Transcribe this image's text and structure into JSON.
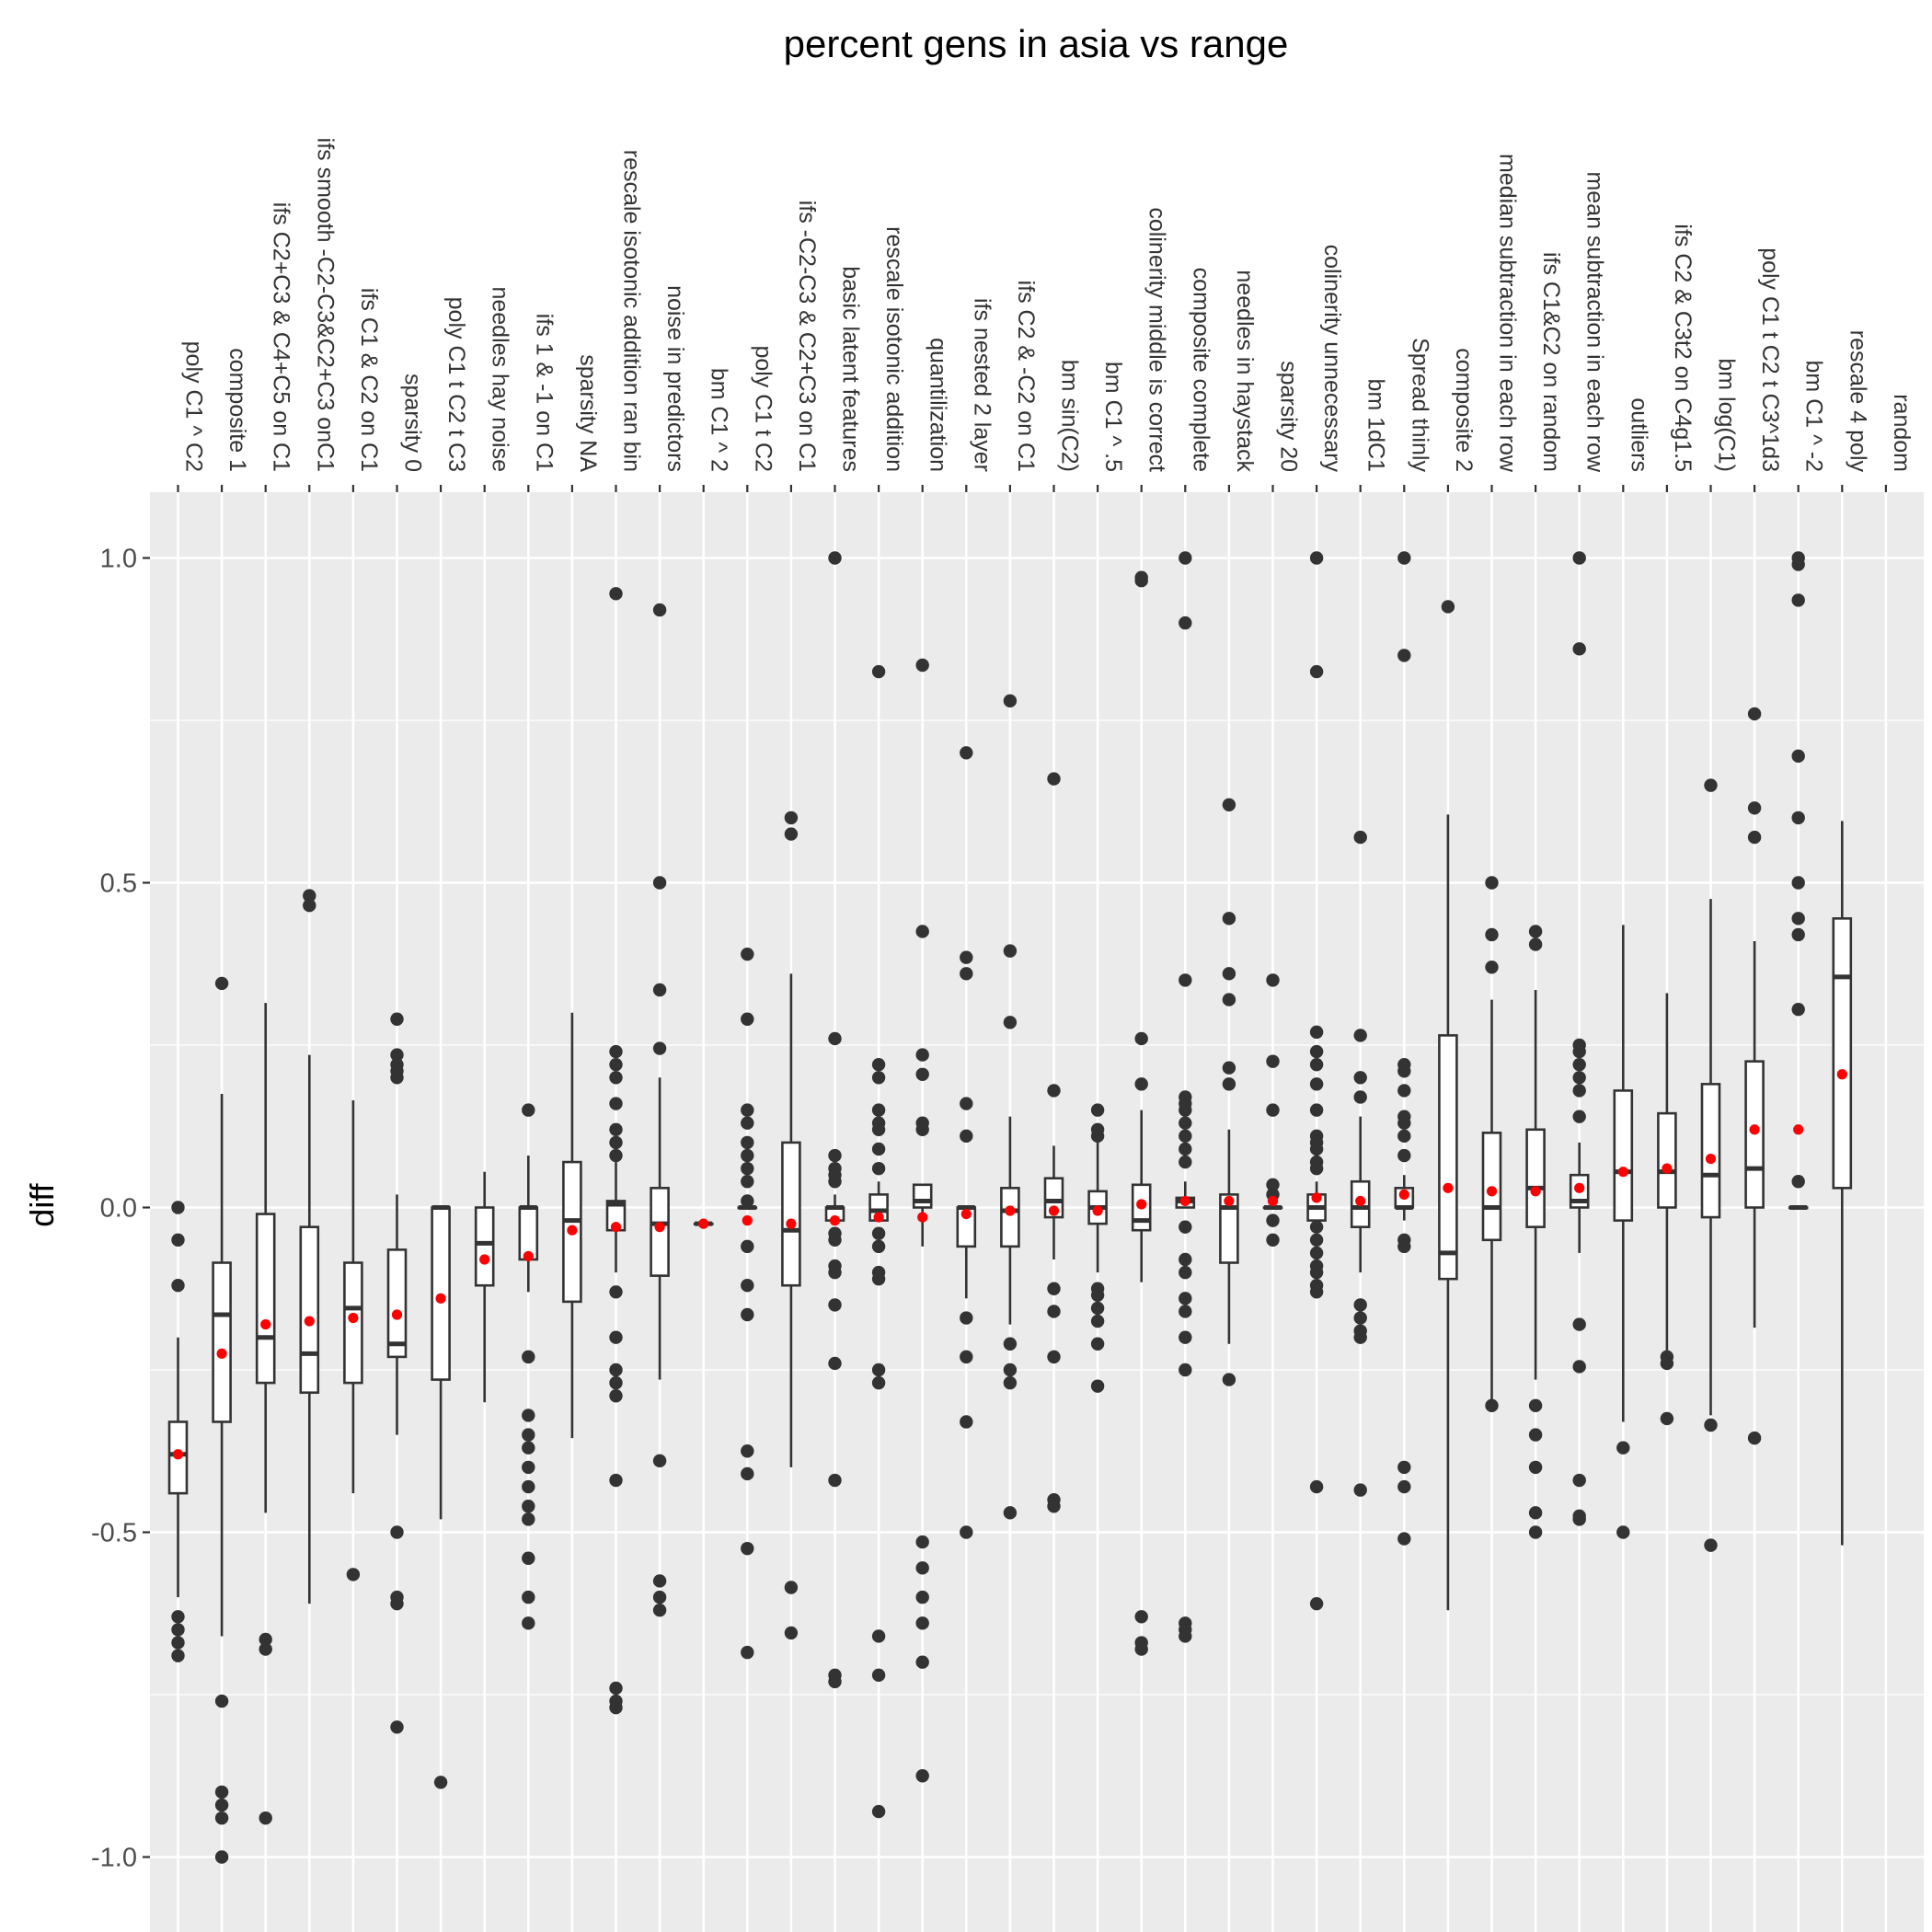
{
  "chart_data": {
    "type": "box",
    "title": "percent gens in asia vs range",
    "xlabel": "",
    "ylabel": "diff",
    "x_axis_position": "top",
    "x_tick_rotation": "vertical",
    "ylim": [
      -1.1,
      1.1
    ],
    "y_ticks": [
      -1.0,
      -0.5,
      0.0,
      0.5,
      1.0
    ],
    "y_tick_labels": [
      "-1.0",
      "-0.5",
      "0.0",
      "0.5",
      "1.0"
    ],
    "grid": true,
    "legend": "none",
    "colors": {
      "panel": "#ebebeb",
      "grid": "#ffffff",
      "box_fill": "#ffffff",
      "box_line": "#333333",
      "outlier": "#333333",
      "mean_point": "#ff0000"
    },
    "series": [
      {
        "name": "poly C1 ^ C2",
        "box": [
          -0.6,
          -0.44,
          -0.38,
          -0.33,
          -0.2
        ],
        "mean": -0.38,
        "outliers": [
          0.0,
          -0.05,
          -0.12,
          -0.63,
          -0.65,
          -0.67,
          -0.69
        ]
      },
      {
        "name": "composite 1",
        "box": [
          -0.66,
          -0.33,
          -0.165,
          -0.085,
          0.175
        ],
        "mean": -0.225,
        "outliers": [
          0.345,
          -0.76,
          -0.9,
          -0.92,
          -0.94,
          -1.0
        ]
      },
      {
        "name": "ifs C2+C3 & C4+C5 on C1",
        "box": [
          -0.47,
          -0.27,
          -0.2,
          -0.01,
          0.315
        ],
        "mean": -0.18,
        "outliers": [
          -0.665,
          -0.68,
          -0.94
        ]
      },
      {
        "name": "ifs smooth -C2-C3&C2+C3 onC1",
        "box": [
          -0.61,
          -0.285,
          -0.225,
          -0.03,
          0.235
        ],
        "mean": -0.175,
        "outliers": [
          0.48,
          0.465
        ]
      },
      {
        "name": "ifs C1 & C2 on C1",
        "box": [
          -0.44,
          -0.27,
          -0.155,
          -0.085,
          0.165
        ],
        "mean": -0.17,
        "outliers": [
          -0.565
        ]
      },
      {
        "name": "sparsity 0",
        "box": [
          -0.35,
          -0.23,
          -0.21,
          -0.065,
          0.02
        ],
        "mean": -0.165,
        "outliers": [
          0.29,
          0.235,
          0.22,
          0.21,
          0.2,
          -0.5,
          -0.6,
          -0.61,
          -0.8
        ]
      },
      {
        "name": "poly C1 t C2 t C3",
        "box": [
          -0.48,
          -0.265,
          0.0,
          0.0,
          0.0
        ],
        "mean": -0.14,
        "outliers": [
          -0.885
        ]
      },
      {
        "name": "needles hay noise",
        "box": [
          -0.3,
          -0.12,
          -0.055,
          0.0,
          0.055
        ],
        "mean": -0.08,
        "outliers": []
      },
      {
        "name": "ifs 1 & -1 on C1",
        "box": [
          -0.13,
          -0.08,
          0.0,
          0.0,
          0.08
        ],
        "mean": -0.075,
        "outliers": [
          0.15,
          -0.23,
          -0.32,
          -0.35,
          -0.37,
          -0.4,
          -0.43,
          -0.46,
          -0.48,
          -0.54,
          -0.6,
          -0.64
        ]
      },
      {
        "name": "sparsity NA",
        "box": [
          -0.355,
          -0.145,
          -0.02,
          0.07,
          0.3
        ],
        "mean": -0.035,
        "outliers": []
      },
      {
        "name": "rescale isotonic addition ran bin",
        "box": [
          -0.1,
          -0.035,
          0.005,
          0.01,
          0.07
        ],
        "mean": -0.03,
        "outliers": [
          0.945,
          0.24,
          0.22,
          0.2,
          0.16,
          0.12,
          0.1,
          0.08,
          -0.13,
          -0.2,
          -0.25,
          -0.27,
          -0.29,
          -0.42,
          -0.74,
          -0.76,
          -0.77
        ]
      },
      {
        "name": "noise in predictors",
        "box": [
          -0.265,
          -0.105,
          -0.025,
          0.03,
          0.2
        ],
        "mean": -0.03,
        "outliers": [
          0.92,
          0.5,
          0.335,
          0.245,
          -0.39,
          -0.575,
          -0.6,
          -0.62
        ]
      },
      {
        "name": "bm C1 ^ 2",
        "box": [
          -0.025,
          -0.025,
          -0.025,
          -0.025,
          -0.025
        ],
        "mean": -0.025,
        "outliers": []
      },
      {
        "name": "poly C1 t C2",
        "box": [
          0.0,
          0.0,
          0.0,
          0.0,
          0.0
        ],
        "mean": -0.02,
        "outliers": [
          0.39,
          0.29,
          0.15,
          0.13,
          0.1,
          0.08,
          0.06,
          0.04,
          0.01,
          -0.06,
          -0.12,
          -0.165,
          -0.375,
          -0.41,
          -0.525,
          -0.685
        ]
      },
      {
        "name": "ifs -C2-C3 & C2+C3 on C1",
        "box": [
          -0.4,
          -0.12,
          -0.035,
          0.1,
          0.36
        ],
        "mean": -0.025,
        "outliers": [
          0.6,
          0.575,
          -0.585,
          -0.655
        ]
      },
      {
        "name": "basic latent features",
        "box": [
          -0.02,
          -0.02,
          0.0,
          0.0,
          0.02
        ],
        "mean": -0.02,
        "outliers": [
          1.0,
          0.26,
          0.08,
          0.06,
          0.05,
          0.04,
          -0.04,
          -0.05,
          -0.09,
          -0.1,
          -0.15,
          -0.24,
          -0.42,
          -0.72,
          -0.73
        ]
      },
      {
        "name": "rescale isotonic addition",
        "box": [
          -0.02,
          -0.02,
          -0.005,
          0.02,
          0.04
        ],
        "mean": -0.015,
        "outliers": [
          0.825,
          0.22,
          0.2,
          0.15,
          0.13,
          0.12,
          0.09,
          0.06,
          -0.04,
          -0.06,
          -0.1,
          -0.11,
          -0.25,
          -0.27,
          -0.66,
          -0.72,
          -0.93
        ]
      },
      {
        "name": "quantilization",
        "box": [
          -0.06,
          0.0,
          0.01,
          0.035,
          0.035
        ],
        "mean": -0.015,
        "outliers": [
          0.835,
          0.425,
          0.235,
          0.205,
          0.13,
          0.12,
          -0.515,
          -0.555,
          -0.6,
          -0.64,
          -0.7,
          -0.875
        ]
      },
      {
        "name": "ifs nested 2 layer",
        "box": [
          -0.14,
          -0.06,
          0.0,
          0.0,
          0.0
        ],
        "mean": -0.01,
        "outliers": [
          0.7,
          0.385,
          0.36,
          0.16,
          0.11,
          -0.17,
          -0.23,
          -0.33,
          -0.5
        ]
      },
      {
        "name": "ifs C2 & -C2 on C1",
        "box": [
          -0.18,
          -0.06,
          -0.005,
          0.03,
          0.14
        ],
        "mean": -0.005,
        "outliers": [
          0.78,
          0.395,
          0.285,
          -0.21,
          -0.25,
          -0.27,
          -0.47
        ]
      },
      {
        "name": "bm sin(C2)",
        "box": [
          -0.08,
          -0.015,
          0.01,
          0.045,
          0.095
        ],
        "mean": -0.005,
        "outliers": [
          0.66,
          0.18,
          -0.125,
          -0.16,
          -0.23,
          -0.45,
          -0.46
        ]
      },
      {
        "name": "bm C1 ^ .5",
        "box": [
          -0.1,
          -0.025,
          0.0,
          0.025,
          0.12
        ],
        "mean": -0.005,
        "outliers": [
          0.15,
          0.12,
          0.11,
          -0.125,
          -0.135,
          -0.155,
          -0.175,
          -0.21,
          -0.275
        ]
      },
      {
        "name": "colinerity middle is correct",
        "box": [
          -0.115,
          -0.035,
          -0.02,
          0.035,
          0.15
        ],
        "mean": 0.005,
        "outliers": [
          0.97,
          0.965,
          0.26,
          0.19,
          -0.63,
          -0.67,
          -0.68
        ]
      },
      {
        "name": "composite complete",
        "box": [
          0.0,
          0.0,
          0.01,
          0.015,
          0.04
        ],
        "mean": 0.01,
        "outliers": [
          1.0,
          0.9,
          0.35,
          0.17,
          0.16,
          0.15,
          0.13,
          0.11,
          0.09,
          0.07,
          -0.03,
          -0.08,
          -0.1,
          -0.14,
          -0.16,
          -0.2,
          -0.25,
          -0.64,
          -0.65,
          -0.66
        ]
      },
      {
        "name": "needles in haystack",
        "box": [
          -0.21,
          -0.085,
          0.0,
          0.02,
          0.12
        ],
        "mean": 0.01,
        "outliers": [
          0.62,
          0.445,
          0.36,
          0.32,
          0.215,
          0.19,
          -0.265
        ]
      },
      {
        "name": "sparsity 20",
        "box": [
          0.0,
          0.0,
          0.0,
          0.0,
          0.0
        ],
        "mean": 0.01,
        "outliers": [
          0.35,
          0.225,
          0.15,
          0.035,
          0.02,
          -0.02,
          -0.05
        ]
      },
      {
        "name": "colinerity unnecessary",
        "box": [
          -0.02,
          -0.02,
          0.0,
          0.02,
          0.04
        ],
        "mean": 0.015,
        "outliers": [
          1.0,
          0.825,
          0.27,
          0.24,
          0.22,
          0.19,
          0.15,
          0.11,
          0.1,
          0.09,
          0.07,
          0.06,
          -0.03,
          -0.05,
          -0.07,
          -0.09,
          -0.1,
          -0.12,
          -0.13,
          -0.43,
          -0.61
        ]
      },
      {
        "name": "bm 1dC1",
        "box": [
          -0.1,
          -0.03,
          0.0,
          0.04,
          0.14
        ],
        "mean": 0.01,
        "outliers": [
          0.57,
          0.265,
          0.2,
          0.17,
          -0.15,
          -0.17,
          -0.19,
          -0.2,
          -0.435
        ]
      },
      {
        "name": "Spread thinly",
        "box": [
          -0.02,
          0.0,
          0.0,
          0.03,
          0.05
        ],
        "mean": 0.02,
        "outliers": [
          1.0,
          0.85,
          0.22,
          0.21,
          0.18,
          0.14,
          0.13,
          0.11,
          0.08,
          -0.05,
          -0.06,
          -0.4,
          -0.43,
          -0.51
        ]
      },
      {
        "name": "composite 2",
        "box": [
          -0.62,
          -0.11,
          -0.07,
          0.265,
          0.605
        ],
        "mean": 0.03,
        "outliers": [
          0.925
        ]
      },
      {
        "name": "median subtraction in each row",
        "box": [
          -0.3,
          -0.05,
          0.0,
          0.115,
          0.32
        ],
        "mean": 0.025,
        "outliers": [
          0.5,
          0.42,
          0.37,
          -0.305
        ]
      },
      {
        "name": "ifs C1&C2 on random",
        "box": [
          -0.265,
          -0.03,
          0.03,
          0.12,
          0.335
        ],
        "mean": 0.025,
        "outliers": [
          0.425,
          0.405,
          -0.305,
          -0.35,
          -0.4,
          -0.47,
          -0.5
        ]
      },
      {
        "name": "mean subtraction in each row",
        "box": [
          -0.07,
          0.0,
          0.01,
          0.05,
          0.1
        ],
        "mean": 0.03,
        "outliers": [
          1.0,
          0.86,
          0.25,
          0.24,
          0.22,
          0.2,
          0.18,
          0.14,
          -0.18,
          -0.245,
          -0.42,
          -0.475,
          -0.48
        ]
      },
      {
        "name": "outliers",
        "box": [
          -0.33,
          -0.02,
          0.055,
          0.18,
          0.435
        ],
        "mean": 0.055,
        "outliers": [
          -0.37,
          -0.5
        ]
      },
      {
        "name": "ifs C2 & C3t2 on C4g1.5",
        "box": [
          -0.22,
          0.0,
          0.055,
          0.145,
          0.33
        ],
        "mean": 0.06,
        "outliers": [
          -0.23,
          -0.24,
          -0.325
        ]
      },
      {
        "name": "bm log(C1)",
        "box": [
          -0.32,
          -0.015,
          0.05,
          0.19,
          0.475
        ],
        "mean": 0.075,
        "outliers": [
          0.65,
          -0.335,
          -0.52
        ]
      },
      {
        "name": "poly C1 t C2 t C3^1d3",
        "box": [
          -0.185,
          0.0,
          0.06,
          0.225,
          0.41
        ],
        "mean": 0.12,
        "outliers": [
          0.76,
          0.615,
          0.57,
          -0.355
        ]
      },
      {
        "name": "bm C1 ^ -2",
        "box": [
          0.0,
          0.0,
          0.0,
          0.0,
          0.0
        ],
        "mean": 0.12,
        "outliers": [
          1.0,
          0.99,
          0.935,
          0.695,
          0.6,
          0.5,
          0.445,
          0.42,
          0.305,
          0.04
        ]
      },
      {
        "name": "rescale 4 poly",
        "box": [
          -0.52,
          0.03,
          0.355,
          0.445,
          0.595
        ],
        "mean": 0.205,
        "outliers": []
      },
      {
        "name": "random",
        "box": null,
        "mean": null,
        "outliers": []
      }
    ]
  }
}
